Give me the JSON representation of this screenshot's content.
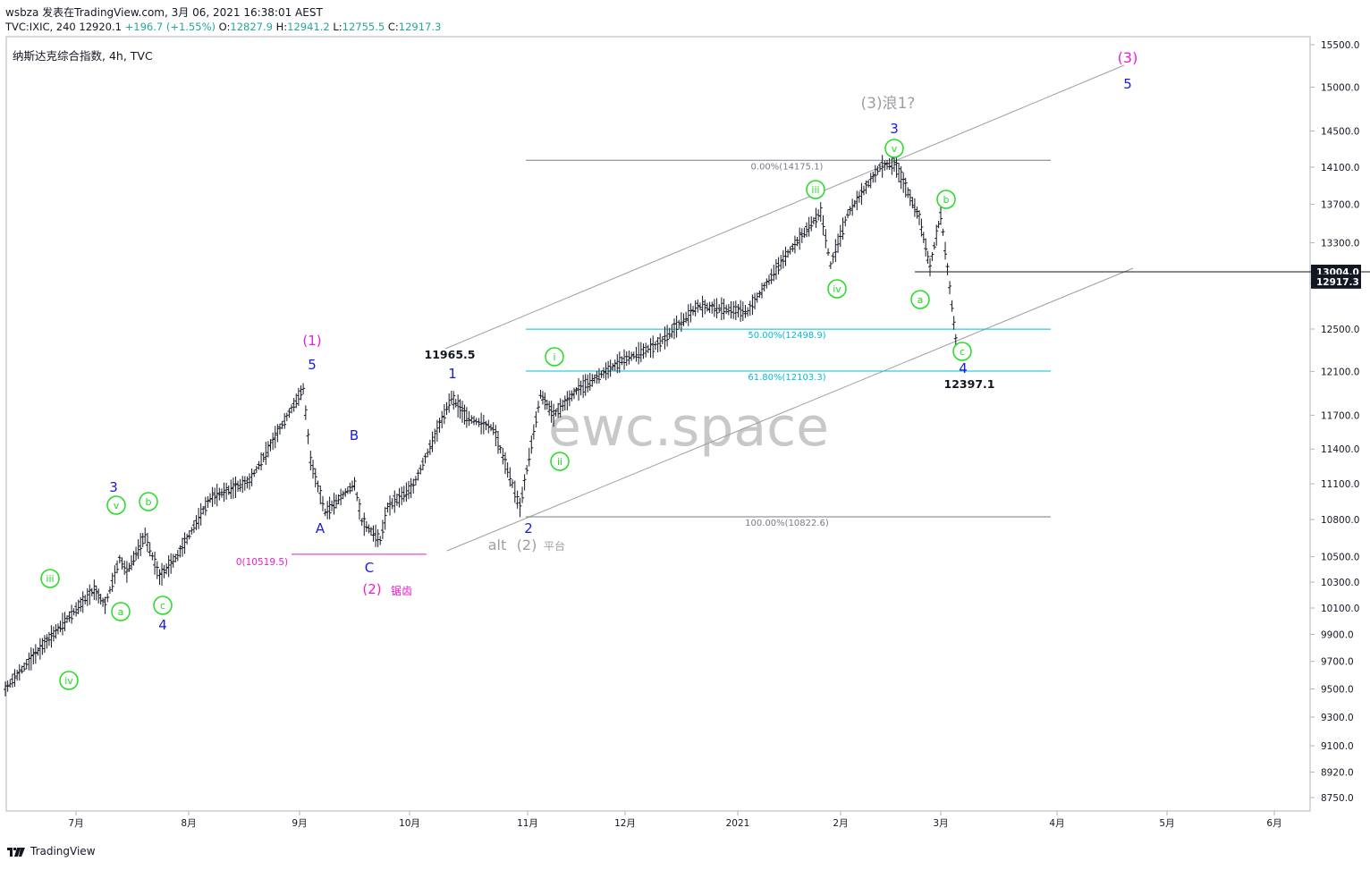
{
  "header": {
    "line1": "wsbza 发表在TradingView.com, 3月 06, 2021 16:38:01 AEST",
    "symbol": "TVC:IXIC, 240",
    "last": "12920.1",
    "change": "+196.7 (+1.55%)",
    "open_label": "O:",
    "open": "12827.9",
    "high_label": "H:",
    "high": "12941.2",
    "low_label": "L:",
    "low": "12755.5",
    "close_label": "C:",
    "close": "12917.3"
  },
  "instrument_title": "纳斯达克综合指数, 4h, TVC",
  "watermark": "ewc.space",
  "footer": {
    "brand": "TradingView"
  },
  "colors": {
    "bars": "#131722",
    "fib": "#00bcd4",
    "wave_blue": "#1a1adb",
    "wave_magenta": "#e91ed0",
    "wave_green": "#22dd22",
    "wave_gray": "#9e9ea6",
    "channel": "#9e9e9e"
  },
  "chart_data": {
    "type": "ohlc",
    "x_axis": {
      "ticks": [
        "7月",
        "8月",
        "9月",
        "10月",
        "11月",
        "12月",
        "2021",
        "2月",
        "3月",
        "4月",
        "5月",
        "6月"
      ]
    },
    "y_axis": {
      "ticks": [
        "15500.0",
        "15000.0",
        "14500.0",
        "14100.0",
        "13700.0",
        "13300.0",
        "12900.0",
        "12500.0",
        "12100.0",
        "11700.0",
        "11400.0",
        "11100.0",
        "10800.0",
        "10500.0",
        "10300.0",
        "10100.0",
        "9900.0",
        "9700.0",
        "9500.0",
        "9300.0",
        "9100.0",
        "8920.0",
        "8750.0"
      ],
      "last_price_label": "12917.3",
      "level_label": "13004.0"
    },
    "price_path": [
      [
        "2020-06-22",
        9500
      ],
      [
        "2020-06-25",
        9700
      ],
      [
        "2020-06-29",
        9960
      ],
      [
        "2020-07-06",
        10240
      ],
      [
        "2020-07-09",
        10120
      ],
      [
        "2020-07-13",
        10480
      ],
      [
        "2020-07-15",
        10380
      ],
      [
        "2020-07-20",
        10670
      ],
      [
        "2020-07-24",
        10340
      ],
      [
        "2020-07-29",
        10510
      ],
      [
        "2020-08-07",
        10980
      ],
      [
        "2020-08-18",
        11120
      ],
      [
        "2020-09-02",
        11940
      ],
      [
        "2020-09-04",
        11300
      ],
      [
        "2020-09-08",
        10860
      ],
      [
        "2020-09-11",
        10950
      ],
      [
        "2020-09-16",
        11100
      ],
      [
        "2020-09-18",
        10780
      ],
      [
        "2020-09-23",
        10630
      ],
      [
        "2020-09-25",
        10900
      ],
      [
        "2020-10-02",
        11080
      ],
      [
        "2020-10-12",
        11860
      ],
      [
        "2020-10-16",
        11680
      ],
      [
        "2020-10-23",
        11580
      ],
      [
        "2020-10-28",
        11100
      ],
      [
        "2020-10-30",
        10900
      ],
      [
        "2020-11-05",
        11890
      ],
      [
        "2020-11-09",
        11700
      ],
      [
        "2020-11-16",
        11920
      ],
      [
        "2020-11-30",
        12200
      ],
      [
        "2020-12-10",
        12350
      ],
      [
        "2020-12-21",
        12700
      ],
      [
        "2021-01-04",
        12650
      ],
      [
        "2021-01-14",
        13100
      ],
      [
        "2021-01-26",
        13620
      ],
      [
        "2021-01-29",
        13070
      ],
      [
        "2021-02-03",
        13600
      ],
      [
        "2021-02-12",
        14100
      ],
      [
        "2021-02-16",
        14150
      ],
      [
        "2021-02-23",
        13560
      ],
      [
        "2021-02-26",
        13050
      ],
      [
        "2021-03-01",
        13600
      ],
      [
        "2021-03-04",
        12700
      ],
      [
        "2021-03-05",
        12400
      ],
      [
        "2021-03-05",
        12917
      ]
    ],
    "fib_levels": [
      {
        "label": "0.00%(14175.1)",
        "value": 14175.1,
        "color": "gray"
      },
      {
        "label": "50.00%(12498.9)",
        "value": 12498.9,
        "color": "cyan"
      },
      {
        "label": "61.80%(12103.3)",
        "value": 12103.3,
        "color": "cyan"
      },
      {
        "label": "100.00%(10822.6)",
        "value": 10822.6,
        "color": "gray"
      }
    ],
    "annotations": [
      {
        "text": "(3)",
        "color": "magenta"
      },
      {
        "text": "5",
        "color": "blue"
      },
      {
        "text": "(3)浪1?",
        "color": "gray"
      },
      {
        "text": "3",
        "color": "blue"
      },
      {
        "text": "(1)",
        "color": "magenta"
      },
      {
        "text": "5",
        "color": "blue"
      },
      {
        "text": "11965.5",
        "color": "black"
      },
      {
        "text": "1",
        "color": "blue"
      },
      {
        "text": "B",
        "color": "blue"
      },
      {
        "text": "A",
        "color": "blue"
      },
      {
        "text": "C",
        "color": "blue"
      },
      {
        "text": "(2)",
        "color": "magenta"
      },
      {
        "text": "锯齿",
        "color": "magenta"
      },
      {
        "text": "0(10519.5)",
        "color": "magenta"
      },
      {
        "text": "2",
        "color": "blue"
      },
      {
        "text": "alt",
        "color": "gray"
      },
      {
        "text": "(2)",
        "color": "gray"
      },
      {
        "text": "平台",
        "color": "gray"
      },
      {
        "text": "3",
        "color": "blue"
      },
      {
        "text": "4",
        "color": "blue"
      },
      {
        "text": "4",
        "color": "blue"
      },
      {
        "text": "12397.1",
        "color": "black"
      }
    ],
    "circled_labels": [
      "iii",
      "iv",
      "v",
      "a",
      "b",
      "c",
      "i",
      "ii",
      "iii",
      "iv",
      "v",
      "a",
      "b",
      "c"
    ]
  }
}
